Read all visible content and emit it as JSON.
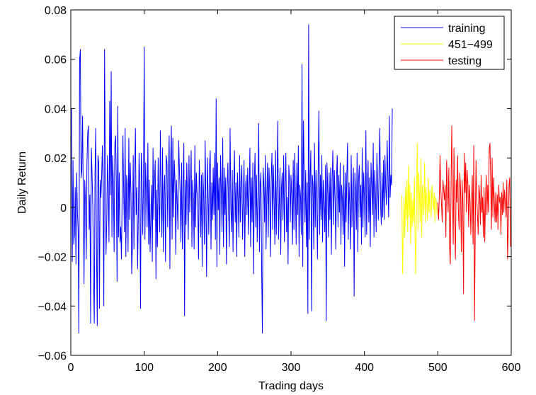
{
  "chart_data": {
    "type": "line",
    "title": "",
    "xlabel": "Trading days",
    "ylabel": "Daily Return",
    "xlim": [
      0,
      600
    ],
    "ylim": [
      -0.06,
      0.08
    ],
    "xticks": [
      0,
      100,
      200,
      300,
      400,
      500,
      600
    ],
    "xtick_labels": [
      "0",
      "100",
      "200",
      "300",
      "400",
      "500",
      "600"
    ],
    "yticks": [
      -0.06,
      -0.04,
      -0.02,
      0,
      0.02,
      0.04,
      0.06,
      0.08
    ],
    "ytick_labels": [
      "−0.06",
      "−0.04",
      "−0.02",
      "0",
      "0.02",
      "0.04",
      "0.06",
      "0.08"
    ],
    "grid": false,
    "legend_position": "top-right",
    "series": [
      {
        "name": "training",
        "color": "#0000ff",
        "x_start": 1,
        "values": [
          0.04,
          -0.022,
          0.019,
          -0.015,
          -0.011,
          0.008,
          -0.023,
          0.014,
          -0.002,
          -0.009,
          -0.051,
          0.06,
          0.064,
          0.012,
          0.015,
          0.037,
          0.005,
          -0.031,
          0.011,
          0.002,
          -0.021,
          0.018,
          0.03,
          0.033,
          -0.009,
          0.005,
          -0.047,
          0.024,
          0.013,
          0.0,
          -0.029,
          -0.047,
          0.014,
          0.032,
          -0.016,
          -0.048,
          0.021,
          0.018,
          -0.041,
          0.011,
          0.004,
          0.012,
          0.025,
          0.005,
          -0.04,
          0.064,
          0.013,
          -0.019,
          -0.005,
          0.021,
          0.008,
          -0.014,
          0.043,
          0.005,
          0.055,
          -0.012,
          0.021,
          0.01,
          -0.018,
          0.026,
          0.029,
          0.011,
          -0.03,
          0.041,
          -0.012,
          0.014,
          -0.014,
          -0.008,
          -0.021,
          0.006,
          0.029,
          0.007,
          -0.01,
          0.032,
          -0.02,
          0.013,
          0.009,
          -0.018,
          0.028,
          -0.005,
          0.018,
          0.005,
          -0.027,
          -0.015,
          0.021,
          -0.017,
          0.011,
          0.032,
          -0.003,
          0.008,
          -0.025,
          -0.004,
          0.022,
          0.008,
          -0.041,
          0.022,
          0.013,
          -0.011,
          0.009,
          0.065,
          -0.013,
          0.018,
          0.006,
          -0.008,
          0.026,
          -0.015,
          0.011,
          -0.018,
          -0.004,
          0.009,
          -0.022,
          0.024,
          -0.005,
          0.011,
          0.019,
          -0.029,
          0.007,
          -0.016,
          0.02,
          0.003,
          -0.01,
          0.031,
          0.005,
          -0.012,
          0.024,
          -0.018,
          0.007,
          0.013,
          -0.022,
          0.021,
          0.018,
          -0.008,
          0.012,
          0.029,
          -0.025,
          0.019,
          0.033,
          -0.013,
          0.028,
          -0.004,
          0.019,
          0.01,
          -0.019,
          0.011,
          0.002,
          -0.009,
          0.027,
          0.015,
          0.006,
          -0.014,
          0.018,
          -0.017,
          0.008,
          0.026,
          -0.044,
          0.011,
          -0.007,
          0.018,
          0.004,
          -0.013,
          0.021,
          -0.002,
          0.009,
          0.023,
          -0.016,
          0.011,
          0.004,
          -0.017,
          0.025,
          -0.008,
          0.014,
          0.006,
          0.001,
          -0.021,
          0.019,
          0.008,
          -0.012,
          0.013,
          -0.024,
          0.014,
          0.004,
          -0.015,
          0.027,
          0.003,
          -0.028,
          0.02,
          0.006,
          -0.011,
          0.017,
          0.023,
          -0.017,
          0.01,
          -0.005,
          0.016,
          -0.003,
          0.022,
          -0.013,
          0.044,
          -0.024,
          0.018,
          -0.001,
          0.012,
          -0.019,
          0.021,
          0.007,
          -0.01,
          0.028,
          -0.016,
          0.016,
          -0.003,
          0.012,
          -0.023,
          0.008,
          0.018,
          -0.002,
          -0.016,
          0.032,
          0.001,
          -0.01,
          0.015,
          -0.018,
          0.009,
          0.023,
          -0.006,
          0.01,
          -0.02,
          0.014,
          0.003,
          -0.012,
          0.021,
          -0.006,
          0.011,
          0.017,
          -0.013,
          0.004,
          0.019,
          -0.02,
          0.008,
          0.013,
          -0.003,
          0.016,
          -0.011,
          0.006,
          0.024,
          -0.016,
          0.012,
          -0.006,
          0.018,
          -0.027,
          0.01,
          0.022,
          -0.008,
          0.013,
          -0.014,
          0.005,
          0.034,
          -0.018,
          0.009,
          0.014,
          -0.025,
          -0.051,
          0.016,
          0.009,
          -0.006,
          0.021,
          -0.017,
          0.004,
          0.018,
          -0.012,
          0.016,
          0.006,
          -0.02,
          0.012,
          0.022,
          -0.009,
          0.017,
          0.003,
          -0.015,
          0.023,
          -0.011,
          0.01,
          0.035,
          -0.013,
          0.002,
          0.016,
          -0.019,
          0.008,
          0.014,
          -0.005,
          0.021,
          -0.014,
          0.009,
          0.022,
          -0.01,
          0.004,
          -0.023,
          0.017,
          0.011,
          -0.006,
          0.013,
          0.004,
          -0.015,
          0.019,
          -0.009,
          0.022,
          0.006,
          -0.015,
          0.018,
          -0.003,
          0.025,
          -0.02,
          0.009,
          0.004,
          -0.011,
          0.058,
          -0.024,
          0.035,
          0.012,
          -0.006,
          0.015,
          -0.016,
          0.01,
          -0.043,
          0.074,
          -0.013,
          0.012,
          0.023,
          -0.042,
          0.013,
          0.009,
          -0.017,
          0.026,
          -0.008,
          0.015,
          0.005,
          -0.021,
          0.016,
          0.039,
          -0.011,
          0.013,
          -0.005,
          0.021,
          -0.014,
          0.011,
          0.002,
          -0.01,
          0.017,
          -0.046,
          0.018,
          0.007,
          -0.012,
          0.014,
          -0.005,
          0.016,
          -0.019,
          0.011,
          0.023,
          -0.007,
          0.015,
          0.004,
          -0.017,
          0.012,
          0.021,
          -0.008,
          0.013,
          -0.002,
          0.018,
          -0.015,
          0.009,
          0.003,
          -0.011,
          0.017,
          -0.024,
          0.014,
          -0.006,
          0.012,
          0.026,
          -0.013,
          0.01,
          0.001,
          -0.017,
          0.021,
          -0.008,
          0.008,
          0.016,
          -0.036,
          0.014,
          0.007,
          -0.009,
          0.022,
          -0.018,
          0.011,
          0.017,
          -0.004,
          0.009,
          -0.015,
          0.024,
          -0.008,
          0.014,
          0.004,
          -0.012,
          0.031,
          -0.011,
          0.008,
          0.019,
          -0.006,
          0.012,
          -0.016,
          0.018,
          0.009,
          -0.003,
          0.026,
          -0.012,
          0.015,
          0.006,
          -0.01,
          0.022,
          0.01,
          -0.005,
          0.017,
          0.032,
          0.001,
          -0.007,
          0.014,
          -0.004,
          0.019,
          -0.005,
          0.021,
          0.008,
          0.001,
          0.027,
          0.012,
          -0.004,
          0.037,
          0.004,
          0.013,
          0.009,
          0.04
        ]
      },
      {
        "name": "451−499",
        "color": "#ffff00",
        "x_start": 451,
        "values": [
          0.005,
          -0.027,
          -0.008,
          0.004,
          -0.012,
          0.008,
          -0.005,
          0.011,
          -0.01,
          0.017,
          -0.004,
          0.009,
          -0.015,
          0.006,
          -0.008,
          0.003,
          -0.006,
          0.012,
          -0.013,
          -0.027,
          0.003,
          0.026,
          -0.009,
          0.014,
          0.005,
          -0.006,
          0.02,
          -0.012,
          0.009,
          0.003,
          -0.003,
          0.018,
          -0.006,
          0.008,
          0.002,
          -0.005,
          0.012,
          -0.002,
          0.007,
          0.001,
          -0.004,
          0.009,
          0.003,
          -0.001,
          0.006,
          -0.006,
          0.004,
          0.002,
          -0.003
        ]
      },
      {
        "name": "testing",
        "color": "#ff0000",
        "x_start": 500,
        "values": [
          0.002,
          -0.005,
          0.004,
          0.021,
          0.008,
          0.001,
          -0.006,
          0.011,
          0.007,
          0.003,
          0.009,
          -0.012,
          0.019,
          0.008,
          -0.002,
          0.016,
          -0.016,
          -0.023,
          0.008,
          0.033,
          0.005,
          -0.015,
          0.024,
          -0.004,
          -0.021,
          0.011,
          0.002,
          0.021,
          -0.002,
          -0.009,
          0.014,
          0.007,
          -0.018,
          0.011,
          0.003,
          -0.035,
          0.022,
          0.006,
          0.018,
          -0.002,
          0.015,
          0.009,
          -0.008,
          0.009,
          0.002,
          -0.011,
          0.003,
          0.013,
          -0.015,
          0.025,
          -0.046,
          -0.009,
          0.019,
          0.004,
          -0.003,
          -0.011,
          0.009,
          0.005,
          -0.007,
          0.013,
          -0.002,
          0.004,
          -0.012,
          0.008,
          -0.014,
          0.004,
          0.013,
          -0.003,
          0.009,
          -0.002,
          0.023,
          0.026,
          0.011,
          -0.009,
          0.02,
          -0.004,
          0.012,
          0.002,
          -0.006,
          0.006,
          -0.006,
          0.005,
          -0.009,
          0.009,
          0.002,
          0.004,
          -0.011,
          0.006,
          -0.003,
          0.01,
          -0.002,
          0.007,
          0.002,
          -0.004,
          0.011,
          -0.021,
          -0.009,
          0.009,
          0.012,
          -0.016
        ]
      }
    ]
  }
}
